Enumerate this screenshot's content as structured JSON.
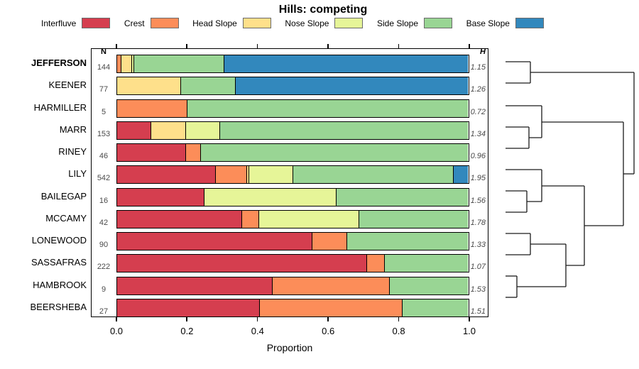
{
  "title": "Hills: competing",
  "xlabel": "Proportion",
  "columns": {
    "n_header": "N",
    "h_header": "H"
  },
  "x_ticks": [
    "0.0",
    "0.2",
    "0.4",
    "0.6",
    "0.8",
    "1.0"
  ],
  "legend": [
    {
      "label": "Interfluve",
      "color": "#D53E4F"
    },
    {
      "label": "Crest",
      "color": "#FC8D59"
    },
    {
      "label": "Head Slope",
      "color": "#FEE08B"
    },
    {
      "label": "Nose Slope",
      "color": "#E6F598"
    },
    {
      "label": "Side Slope",
      "color": "#99D594"
    },
    {
      "label": "Base Slope",
      "color": "#3288BD"
    }
  ],
  "chart_data": {
    "type": "bar",
    "stacked": true,
    "orientation": "horizontal",
    "title": "Hills: competing",
    "xlabel": "Proportion",
    "xlim": [
      0,
      1
    ],
    "categories": [
      "Interfluve",
      "Crest",
      "Head Slope",
      "Nose Slope",
      "Side Slope",
      "Base Slope"
    ],
    "colors": {
      "Interfluve": "#D53E4F",
      "Crest": "#FC8D59",
      "Head Slope": "#FEE08B",
      "Nose Slope": "#E6F598",
      "Side Slope": "#99D594",
      "Base Slope": "#3288BD"
    },
    "rows": [
      {
        "name": "JEFFERSON",
        "bold": true,
        "n": 144,
        "h": "1.15",
        "segments": [
          {
            "c": "Crest",
            "v": 0.013
          },
          {
            "c": "Head Slope",
            "v": 0.029
          },
          {
            "c": "Nose Slope",
            "v": 0.006
          },
          {
            "c": "Side Slope",
            "v": 0.257
          },
          {
            "c": "Base Slope",
            "v": 0.695
          }
        ]
      },
      {
        "name": "KEENER",
        "bold": false,
        "n": 77,
        "h": "1.26",
        "segments": [
          {
            "c": "Head Slope",
            "v": 0.182
          },
          {
            "c": "Side Slope",
            "v": 0.156
          },
          {
            "c": "Base Slope",
            "v": 0.662
          }
        ]
      },
      {
        "name": "HARMILLER",
        "bold": false,
        "n": 5,
        "h": "0.72",
        "segments": [
          {
            "c": "Crest",
            "v": 0.2
          },
          {
            "c": "Side Slope",
            "v": 0.8
          }
        ]
      },
      {
        "name": "MARR",
        "bold": false,
        "n": 153,
        "h": "1.34",
        "segments": [
          {
            "c": "Interfluve",
            "v": 0.098
          },
          {
            "c": "Head Slope",
            "v": 0.098
          },
          {
            "c": "Nose Slope",
            "v": 0.098
          },
          {
            "c": "Side Slope",
            "v": 0.706
          }
        ]
      },
      {
        "name": "RINEY",
        "bold": false,
        "n": 46,
        "h": "0.96",
        "segments": [
          {
            "c": "Interfluve",
            "v": 0.196
          },
          {
            "c": "Crest",
            "v": 0.043
          },
          {
            "c": "Side Slope",
            "v": 0.761
          }
        ]
      },
      {
        "name": "LILY",
        "bold": false,
        "n": 542,
        "h": "1.95",
        "segments": [
          {
            "c": "Interfluve",
            "v": 0.282
          },
          {
            "c": "Crest",
            "v": 0.089
          },
          {
            "c": "Head Slope",
            "v": 0.006
          },
          {
            "c": "Nose Slope",
            "v": 0.125
          },
          {
            "c": "Side Slope",
            "v": 0.457
          },
          {
            "c": "Base Slope",
            "v": 0.041
          }
        ]
      },
      {
        "name": "BAILEGAP",
        "bold": false,
        "n": 16,
        "h": "1.56",
        "segments": [
          {
            "c": "Interfluve",
            "v": 0.25
          },
          {
            "c": "Nose Slope",
            "v": 0.375
          },
          {
            "c": "Side Slope",
            "v": 0.375
          }
        ]
      },
      {
        "name": "MCCAMY",
        "bold": false,
        "n": 42,
        "h": "1.78",
        "segments": [
          {
            "c": "Interfluve",
            "v": 0.357
          },
          {
            "c": "Crest",
            "v": 0.048
          },
          {
            "c": "Nose Slope",
            "v": 0.286
          },
          {
            "c": "Side Slope",
            "v": 0.309
          }
        ]
      },
      {
        "name": "LONEWOOD",
        "bold": false,
        "n": 90,
        "h": "1.33",
        "segments": [
          {
            "c": "Interfluve",
            "v": 0.556
          },
          {
            "c": "Crest",
            "v": 0.1
          },
          {
            "c": "Side Slope",
            "v": 0.344
          }
        ]
      },
      {
        "name": "SASSAFRAS",
        "bold": false,
        "n": 222,
        "h": "1.07",
        "segments": [
          {
            "c": "Interfluve",
            "v": 0.712
          },
          {
            "c": "Crest",
            "v": 0.052
          },
          {
            "c": "Side Slope",
            "v": 0.236
          }
        ]
      },
      {
        "name": "HAMBROOK",
        "bold": false,
        "n": 9,
        "h": "1.53",
        "segments": [
          {
            "c": "Interfluve",
            "v": 0.444
          },
          {
            "c": "Crest",
            "v": 0.334
          },
          {
            "c": "Side Slope",
            "v": 0.222
          }
        ]
      },
      {
        "name": "BEERSHEBA",
        "bold": false,
        "n": 27,
        "h": "1.51",
        "segments": [
          {
            "c": "Interfluve",
            "v": 0.407
          },
          {
            "c": "Crest",
            "v": 0.407
          },
          {
            "c": "Side Slope",
            "v": 0.186
          }
        ]
      }
    ],
    "dendrogram_segments": [
      [
        712,
        87,
        747,
        87
      ],
      [
        712,
        117,
        747,
        117
      ],
      [
        747,
        87,
        747,
        117
      ],
      [
        747,
        102,
        893,
        102
      ],
      [
        712,
        149,
        763,
        149
      ],
      [
        712,
        179,
        745,
        179
      ],
      [
        712,
        209,
        745,
        209
      ],
      [
        745,
        179,
        745,
        209
      ],
      [
        745,
        194,
        763,
        194
      ],
      [
        763,
        149,
        763,
        194
      ],
      [
        763,
        172,
        878,
        172
      ],
      [
        712,
        239,
        763,
        239
      ],
      [
        712,
        269,
        742,
        269
      ],
      [
        712,
        299,
        742,
        299
      ],
      [
        742,
        269,
        742,
        299
      ],
      [
        742,
        284,
        763,
        284
      ],
      [
        763,
        239,
        763,
        284
      ],
      [
        763,
        262,
        823,
        262
      ],
      [
        712,
        329,
        747,
        329
      ],
      [
        712,
        359,
        747,
        359
      ],
      [
        747,
        329,
        747,
        359
      ],
      [
        747,
        344,
        797,
        344
      ],
      [
        712,
        389,
        728,
        389
      ],
      [
        712,
        419,
        728,
        419
      ],
      [
        728,
        389,
        728,
        419
      ],
      [
        728,
        404,
        797,
        404
      ],
      [
        797,
        344,
        797,
        404
      ],
      [
        797,
        374,
        823,
        374
      ],
      [
        823,
        262,
        823,
        374
      ],
      [
        823,
        318,
        878,
        318
      ],
      [
        878,
        172,
        878,
        318
      ],
      [
        878,
        245,
        893,
        245
      ],
      [
        893,
        102,
        893,
        245
      ]
    ]
  }
}
